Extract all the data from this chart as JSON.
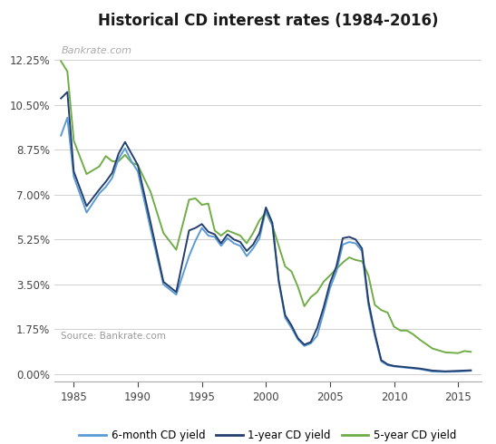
{
  "title": "Historical CD interest rates (1984-2016)",
  "watermark": "Bankrate.com",
  "source": "Source: Bankrate.com",
  "xlim": [
    1983.5,
    2016.8
  ],
  "ylim": [
    -0.3,
    13.2
  ],
  "yticks": [
    0.0,
    1.75,
    3.5,
    5.25,
    7.0,
    8.75,
    10.5,
    12.25
  ],
  "ytick_labels": [
    "0.00%",
    "1.75%",
    "3.50%",
    "5.25%",
    "7.00%",
    "8.75%",
    "10.50%",
    "12.25%"
  ],
  "xticks": [
    1985,
    1990,
    1995,
    2000,
    2005,
    2010,
    2015
  ],
  "color_6mo": "#5b9bd5",
  "color_1yr": "#243f6e",
  "color_5yr": "#70ad47",
  "legend_labels": [
    "6-month CD yield",
    "1-year CD yield",
    "5-year CD yield"
  ],
  "years_6mo": [
    1984.0,
    1984.5,
    1985.0,
    1986.0,
    1987.0,
    1987.5,
    1988.0,
    1988.5,
    1989.0,
    1989.5,
    1990.0,
    1991.0,
    1992.0,
    1993.0,
    1994.0,
    1994.5,
    1995.0,
    1995.5,
    1996.0,
    1996.5,
    1997.0,
    1997.5,
    1998.0,
    1998.5,
    1999.0,
    1999.5,
    2000.0,
    2000.5,
    2001.0,
    2001.5,
    2002.0,
    2002.5,
    2003.0,
    2003.5,
    2004.0,
    2004.5,
    2005.0,
    2005.5,
    2006.0,
    2006.5,
    2007.0,
    2007.5,
    2008.0,
    2008.5,
    2009.0,
    2009.5,
    2010.0,
    2011.0,
    2012.0,
    2013.0,
    2014.0,
    2015.0,
    2016.0
  ],
  "values_6mo": [
    9.3,
    10.0,
    7.7,
    6.3,
    7.05,
    7.3,
    7.65,
    8.4,
    8.8,
    8.3,
    7.9,
    5.65,
    3.5,
    3.1,
    4.6,
    5.2,
    5.7,
    5.4,
    5.35,
    5.0,
    5.3,
    5.1,
    5.0,
    4.6,
    4.9,
    5.3,
    6.4,
    5.8,
    3.6,
    2.2,
    1.8,
    1.35,
    1.1,
    1.2,
    1.5,
    2.4,
    3.35,
    4.0,
    5.05,
    5.15,
    5.1,
    4.8,
    2.7,
    1.5,
    0.5,
    0.35,
    0.3,
    0.25,
    0.2,
    0.1,
    0.09,
    0.1,
    0.13
  ],
  "years_1yr": [
    1984.0,
    1984.5,
    1985.0,
    1986.0,
    1987.0,
    1987.5,
    1988.0,
    1988.5,
    1989.0,
    1989.5,
    1990.0,
    1991.0,
    1992.0,
    1993.0,
    1994.0,
    1994.5,
    1995.0,
    1995.5,
    1996.0,
    1996.5,
    1997.0,
    1997.5,
    1998.0,
    1998.5,
    1999.0,
    1999.5,
    2000.0,
    2000.5,
    2001.0,
    2001.5,
    2002.0,
    2002.5,
    2003.0,
    2003.5,
    2004.0,
    2004.5,
    2005.0,
    2005.5,
    2006.0,
    2006.5,
    2007.0,
    2007.5,
    2008.0,
    2008.5,
    2009.0,
    2009.5,
    2010.0,
    2011.0,
    2012.0,
    2013.0,
    2014.0,
    2015.0,
    2016.0
  ],
  "values_1yr": [
    10.75,
    11.0,
    7.9,
    6.55,
    7.2,
    7.5,
    7.85,
    8.6,
    9.05,
    8.6,
    8.15,
    5.9,
    3.6,
    3.2,
    5.6,
    5.7,
    5.85,
    5.55,
    5.45,
    5.1,
    5.45,
    5.25,
    5.15,
    4.8,
    5.05,
    5.5,
    6.5,
    5.9,
    3.65,
    2.3,
    1.9,
    1.4,
    1.15,
    1.25,
    1.8,
    2.6,
    3.55,
    4.2,
    5.3,
    5.35,
    5.25,
    4.9,
    2.85,
    1.6,
    0.55,
    0.38,
    0.32,
    0.27,
    0.22,
    0.14,
    0.11,
    0.13,
    0.15
  ],
  "years_5yr": [
    1984.0,
    1984.5,
    1985.0,
    1986.0,
    1987.0,
    1987.5,
    1988.0,
    1988.5,
    1989.0,
    1989.5,
    1990.0,
    1991.0,
    1992.0,
    1993.0,
    1994.0,
    1994.5,
    1995.0,
    1995.5,
    1996.0,
    1996.5,
    1997.0,
    1997.5,
    1998.0,
    1998.5,
    1999.0,
    1999.5,
    2000.0,
    2000.5,
    2001.0,
    2001.5,
    2002.0,
    2002.5,
    2003.0,
    2003.5,
    2004.0,
    2004.5,
    2005.0,
    2005.5,
    2006.0,
    2006.5,
    2007.0,
    2007.5,
    2008.0,
    2008.5,
    2009.0,
    2009.5,
    2010.0,
    2010.5,
    2011.0,
    2011.5,
    2012.0,
    2013.0,
    2014.0,
    2015.0,
    2015.5,
    2016.0
  ],
  "values_5yr": [
    12.2,
    11.8,
    9.1,
    7.8,
    8.1,
    8.5,
    8.3,
    8.3,
    8.55,
    8.25,
    8.15,
    7.1,
    5.5,
    4.85,
    6.8,
    6.85,
    6.6,
    6.65,
    5.6,
    5.4,
    5.6,
    5.5,
    5.4,
    5.1,
    5.5,
    6.0,
    6.3,
    5.8,
    5.0,
    4.2,
    4.0,
    3.4,
    2.65,
    3.0,
    3.2,
    3.6,
    3.85,
    4.1,
    4.35,
    4.55,
    4.45,
    4.4,
    3.85,
    2.7,
    2.5,
    2.4,
    1.85,
    1.7,
    1.7,
    1.55,
    1.35,
    1.0,
    0.85,
    0.82,
    0.9,
    0.87
  ]
}
